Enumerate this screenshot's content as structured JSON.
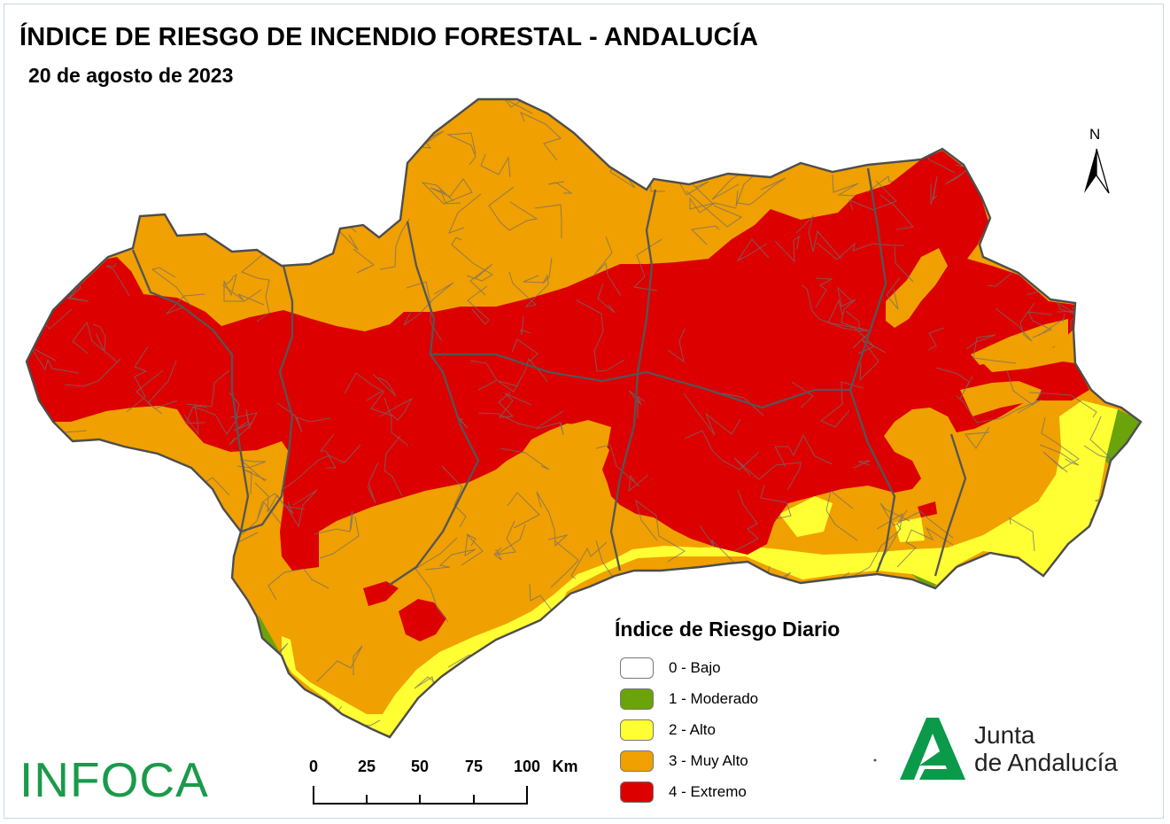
{
  "title": "ÍNDICE DE RIESGO DE INCENDIO FORESTAL - ANDALUCÍA",
  "date": "20 de agosto de 2023",
  "legend": {
    "title": "Índice de Riesgo Diario",
    "items": [
      {
        "label": "0 - Bajo",
        "color": "#ffffff"
      },
      {
        "label": "1 - Moderado",
        "color": "#6aa30a"
      },
      {
        "label": "2 - Alto",
        "color": "#ffff33"
      },
      {
        "label": "3 - Muy Alto",
        "color": "#f0a000"
      },
      {
        "label": "4 - Extremo",
        "color": "#dc0000"
      }
    ]
  },
  "scale_bar": {
    "ticks": [
      "0",
      "25",
      "50",
      "75",
      "100"
    ],
    "unit": "Km"
  },
  "north_arrow": {
    "label": "N",
    "icon": "north-arrow-icon"
  },
  "logos": {
    "infoca": "INFOCA",
    "junta_line1": "Junta",
    "junta_line2": "de Andalucía",
    "junta_icon": "junta-de-andalucia-logo-icon",
    "infoca_color": "#1a9a4a"
  },
  "map_colors": {
    "extremo": "#dc0000",
    "muy_alto": "#f0a000",
    "alto": "#ffff33",
    "moderado": "#6aa30a",
    "boundary": "#555555"
  }
}
